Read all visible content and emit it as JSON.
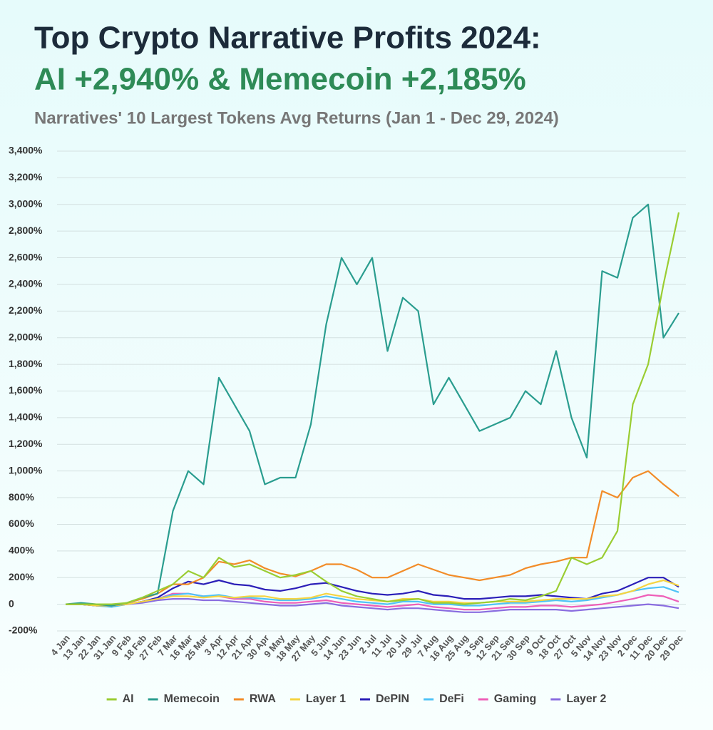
{
  "chart_data": {
    "type": "line",
    "title": "Top Crypto Narrative Profits 2024:",
    "subtitle": "AI +2,940% & Memecoin +2,185%",
    "description": "Narratives' 10 Largest Tokens Avg Returns (Jan 1 - Dec 29, 2024)",
    "categories": [
      "4 Jan",
      "13 Jan",
      "22 Jan",
      "31 Jan",
      "9 Feb",
      "18 Feb",
      "27 Feb",
      "7 Mar",
      "16 Mar",
      "25 Mar",
      "3 Apr",
      "12 Apr",
      "21 Apr",
      "30 Apr",
      "9 May",
      "18 May",
      "27 May",
      "5 Jun",
      "14 Jun",
      "23 Jun",
      "2 Jul",
      "11 Jul",
      "20 Jul",
      "29 Jul",
      "7 Aug",
      "16 Aug",
      "25 Aug",
      "3 Sep",
      "12 Sep",
      "21 Sep",
      "30 Sep",
      "9 Oct",
      "18 Oct",
      "27 Oct",
      "5 Nov",
      "14 Nov",
      "23 Nov",
      "2 Dec",
      "11 Dec",
      "20 Dec",
      "29 Dec"
    ],
    "series": [
      {
        "name": "AI",
        "color": "#9acd32",
        "values": [
          0,
          0,
          0,
          0,
          10,
          50,
          100,
          150,
          250,
          200,
          350,
          280,
          300,
          250,
          200,
          220,
          250,
          170,
          100,
          60,
          40,
          20,
          30,
          40,
          10,
          10,
          0,
          10,
          20,
          40,
          30,
          60,
          100,
          350,
          300,
          350,
          550,
          1500,
          1800,
          2400,
          2940
        ]
      },
      {
        "name": "Memecoin",
        "color": "#2a9d8f",
        "values": [
          0,
          10,
          0,
          -10,
          10,
          50,
          80,
          700,
          1000,
          900,
          1700,
          1500,
          1300,
          900,
          950,
          950,
          1350,
          2100,
          2600,
          2400,
          2600,
          1900,
          2300,
          2200,
          1500,
          1700,
          1500,
          1300,
          1350,
          1400,
          1600,
          1500,
          1900,
          1400,
          1100,
          2500,
          2450,
          2900,
          3000,
          2000,
          2185
        ]
      },
      {
        "name": "RWA",
        "color": "#f28c28",
        "values": [
          0,
          0,
          0,
          -10,
          10,
          40,
          80,
          150,
          150,
          200,
          320,
          300,
          330,
          270,
          230,
          210,
          250,
          300,
          300,
          260,
          200,
          200,
          250,
          300,
          260,
          220,
          200,
          180,
          200,
          220,
          270,
          300,
          320,
          350,
          350,
          850,
          800,
          950,
          1000,
          900,
          810
        ]
      },
      {
        "name": "Layer 1",
        "color": "#f5d442",
        "values": [
          0,
          0,
          -10,
          -10,
          0,
          20,
          40,
          60,
          60,
          50,
          60,
          50,
          60,
          60,
          40,
          40,
          50,
          80,
          60,
          40,
          30,
          20,
          40,
          40,
          20,
          20,
          10,
          10,
          20,
          20,
          20,
          30,
          40,
          40,
          40,
          60,
          70,
          100,
          150,
          180,
          140
        ]
      },
      {
        "name": "DePIN",
        "color": "#2b1fb8",
        "values": [
          0,
          0,
          -10,
          -10,
          0,
          20,
          50,
          120,
          170,
          150,
          180,
          150,
          140,
          110,
          100,
          120,
          150,
          160,
          130,
          100,
          80,
          70,
          80,
          100,
          70,
          60,
          40,
          40,
          50,
          60,
          60,
          70,
          60,
          50,
          40,
          80,
          100,
          150,
          200,
          200,
          130
        ]
      },
      {
        "name": "DeFi",
        "color": "#4fc3f7",
        "values": [
          0,
          0,
          -10,
          -20,
          0,
          20,
          40,
          70,
          80,
          60,
          70,
          50,
          50,
          40,
          30,
          30,
          40,
          60,
          40,
          20,
          10,
          0,
          20,
          20,
          0,
          0,
          -10,
          -10,
          0,
          10,
          10,
          20,
          30,
          20,
          30,
          50,
          70,
          100,
          120,
          130,
          90
        ]
      },
      {
        "name": "Gaming",
        "color": "#ee5fb8",
        "values": [
          0,
          0,
          -10,
          -10,
          0,
          20,
          40,
          80,
          80,
          60,
          60,
          40,
          40,
          20,
          10,
          10,
          20,
          30,
          10,
          0,
          -10,
          -20,
          -10,
          0,
          -20,
          -30,
          -40,
          -40,
          -30,
          -20,
          -20,
          -10,
          -10,
          -20,
          -10,
          0,
          20,
          40,
          70,
          60,
          20
        ]
      },
      {
        "name": "Layer 2",
        "color": "#8a6de0",
        "values": [
          0,
          0,
          -10,
          -10,
          0,
          10,
          30,
          40,
          40,
          30,
          30,
          20,
          10,
          0,
          -10,
          -10,
          0,
          10,
          -10,
          -20,
          -30,
          -40,
          -30,
          -30,
          -40,
          -50,
          -60,
          -60,
          -50,
          -40,
          -40,
          -40,
          -40,
          -50,
          -40,
          -30,
          -20,
          -10,
          0,
          -10,
          -30
        ]
      }
    ],
    "ylim": [
      -200,
      3400
    ],
    "yticks": [
      {
        "value": -200,
        "label": "-200%"
      },
      0,
      {
        "value": 200,
        "label": "200%"
      },
      {
        "value": 400,
        "label": "400%"
      },
      {
        "value": 600,
        "label": "600%"
      },
      {
        "value": 800,
        "label": "800%"
      },
      {
        "value": 1000,
        "label": "1,000%"
      },
      {
        "value": 1200,
        "label": "1,200%"
      },
      {
        "value": 1400,
        "label": "1,400%"
      },
      {
        "value": 1600,
        "label": "1,600%"
      },
      {
        "value": 1800,
        "label": "1,800%"
      },
      {
        "value": 2000,
        "label": "2,000%"
      },
      {
        "value": 2200,
        "label": "2,200%"
      },
      {
        "value": 2400,
        "label": "2,400%"
      },
      {
        "value": 2600,
        "label": "2,600%"
      },
      {
        "value": 2800,
        "label": "2,800%"
      },
      {
        "value": 3000,
        "label": "3,000%"
      },
      {
        "value": 3200,
        "label": "3,200%"
      },
      {
        "value": 3400,
        "label": "3,400%"
      }
    ],
    "grid": true,
    "legend": "bottom"
  }
}
